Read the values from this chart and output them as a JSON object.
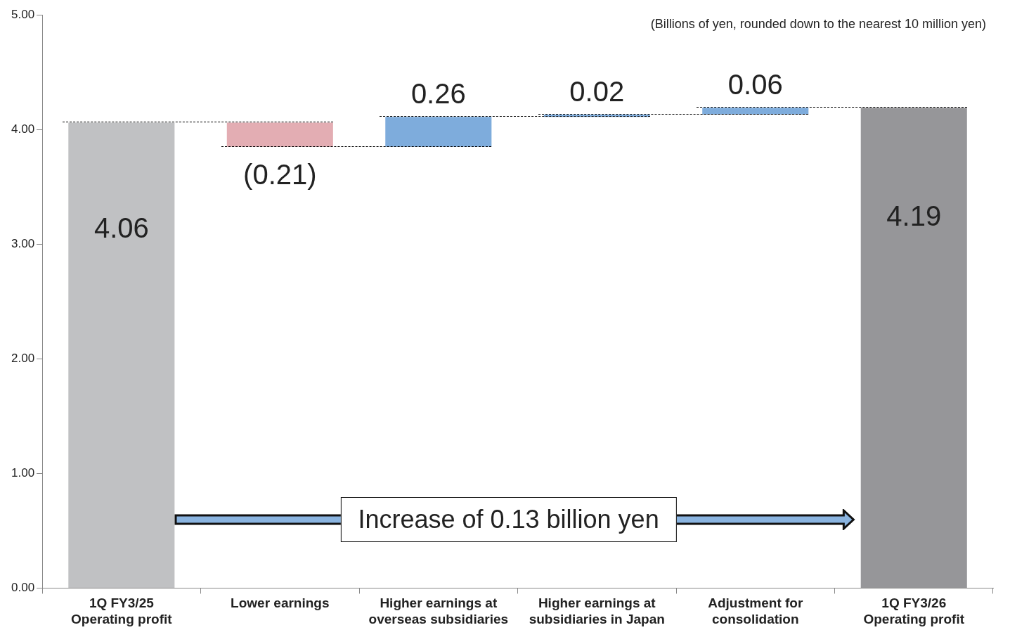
{
  "chart_data": {
    "type": "bar",
    "categories": [
      "1Q FY3/25\nOperating profit",
      "Lower earnings",
      "Higher earnings at\noverseas subsidiaries",
      "Higher earnings at\nsubsidiaries in Japan",
      "Adjustment for\nconsolidation",
      "1Q FY3/26\nOperating profit"
    ],
    "values": [
      4.06,
      -0.21,
      0.26,
      0.02,
      0.06,
      4.19
    ],
    "base": [
      0,
      4.06,
      3.85,
      4.11,
      4.13,
      0
    ],
    "colors": [
      "#c0c1c3",
      "#e3adb3",
      "#7eacdc",
      "#7eacdc",
      "#7eacdc",
      "#969699"
    ],
    "value_labels": [
      "4.06",
      "(0.21)",
      "0.26",
      "0.02",
      "0.06",
      "4.19"
    ],
    "ylim": [
      0,
      5
    ],
    "yticks": [
      {
        "value": 0,
        "label": "0.00"
      },
      {
        "value": 1,
        "label": "1.00"
      },
      {
        "value": 2,
        "label": "2.00"
      },
      {
        "value": 3,
        "label": "3.00"
      },
      {
        "value": 4,
        "label": "4.00"
      },
      {
        "value": 5,
        "label": "5.00"
      }
    ],
    "grid": false,
    "legend": false,
    "annotations": [
      "(Billions of yen, rounded down to the nearest 10 million yen)",
      "Increase of 0.13 billion yen"
    ]
  }
}
